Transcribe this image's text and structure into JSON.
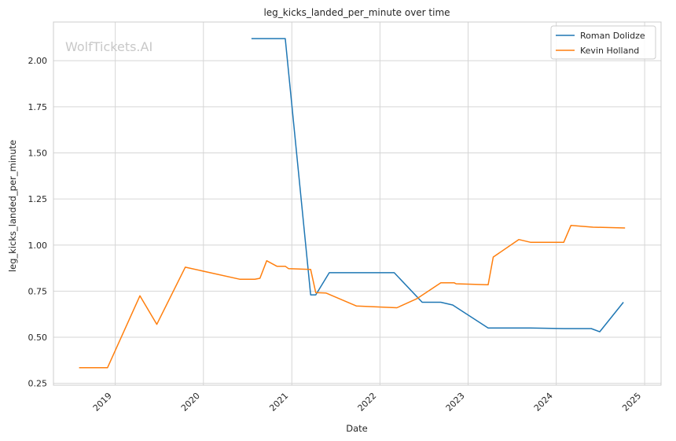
{
  "chart_data": {
    "type": "line",
    "title": "leg_kicks_landed_per_minute over time",
    "xlabel": "Date",
    "ylabel": "leg_kicks_landed_per_minute",
    "watermark": "WolfTickets.AI",
    "grid": true,
    "legend_position": "top-right",
    "xlim": [
      "2018-04-20",
      "2025-03-10"
    ],
    "ylim": [
      0.24,
      2.21
    ],
    "x_ticks": [
      "2019-01-01",
      "2020-01-01",
      "2021-01-01",
      "2022-01-01",
      "2023-01-01",
      "2024-01-01",
      "2025-01-01"
    ],
    "x_tick_labels": [
      "2019",
      "2020",
      "2021",
      "2022",
      "2023",
      "2024",
      "2025"
    ],
    "y_ticks": [
      0.25,
      0.5,
      0.75,
      1.0,
      1.25,
      1.5,
      1.75,
      2.0
    ],
    "y_tick_labels": [
      "0.25",
      "0.50",
      "0.75",
      "1.00",
      "1.25",
      "1.50",
      "1.75",
      "2.00"
    ],
    "series": [
      {
        "name": "Roman Dolidze",
        "color": "#1f77b4",
        "x": [
          "2020-07-18",
          "2020-12-05",
          "2021-03-20",
          "2021-04-10",
          "2021-06-05",
          "2022-03-01",
          "2022-06-25",
          "2022-09-10",
          "2022-10-29",
          "2023-03-25",
          "2023-09-15",
          "2024-02-01",
          "2024-05-25",
          "2024-06-29",
          "2024-10-05"
        ],
        "y": [
          2.12,
          2.12,
          0.73,
          0.73,
          0.85,
          0.85,
          0.69,
          0.69,
          0.675,
          0.55,
          0.55,
          0.547,
          0.547,
          0.53,
          0.69
        ]
      },
      {
        "name": "Kevin Holland",
        "color": "#ff7f0e",
        "x": [
          "2018-08-04",
          "2018-11-30",
          "2019-04-13",
          "2019-06-22",
          "2019-10-18",
          "2020-05-30",
          "2020-08-01",
          "2020-08-22",
          "2020-09-19",
          "2020-10-31",
          "2020-12-05",
          "2020-12-19",
          "2021-03-20",
          "2021-04-10",
          "2021-05-22",
          "2021-09-25",
          "2022-03-12",
          "2022-06-04",
          "2022-09-10",
          "2022-11-05",
          "2022-11-12",
          "2023-03-25",
          "2023-04-15",
          "2023-07-30",
          "2023-09-16",
          "2024-02-01",
          "2024-03-02",
          "2024-06-01",
          "2024-10-12"
        ],
        "y": [
          0.335,
          0.335,
          0.725,
          0.57,
          0.88,
          0.815,
          0.815,
          0.82,
          0.915,
          0.885,
          0.885,
          0.872,
          0.868,
          0.742,
          0.74,
          0.67,
          0.66,
          0.71,
          0.795,
          0.795,
          0.79,
          0.785,
          0.935,
          1.03,
          1.015,
          1.015,
          1.107,
          1.097,
          1.093
        ]
      }
    ]
  }
}
